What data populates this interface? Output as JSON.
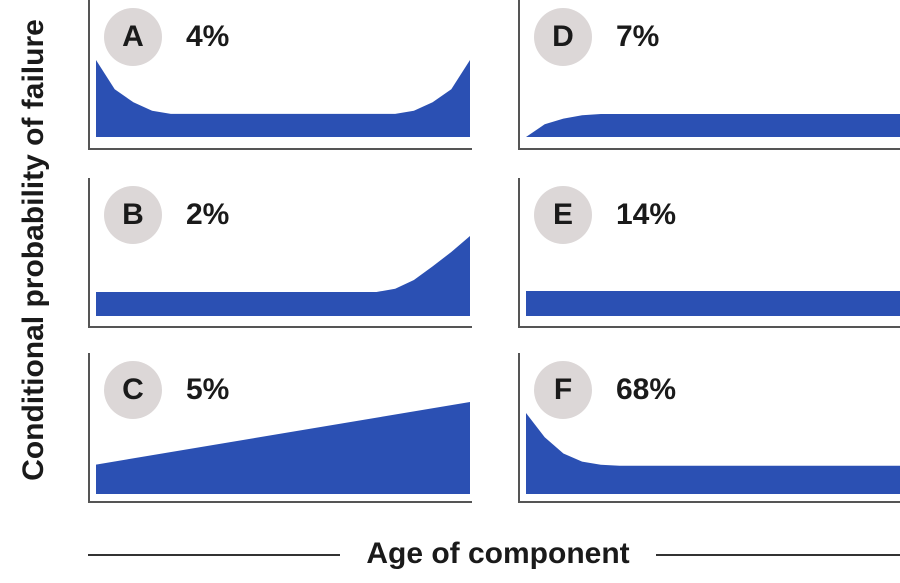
{
  "colors": {
    "fill": "#2b50b3",
    "axis": "#555555",
    "badge": "#dcd7d7"
  },
  "chart_data": [
    {
      "type": "area",
      "panel": "A",
      "percent": "4%",
      "pattern": "bathtub: high early (infant mortality), flat, rising at end (wear-out)",
      "x": [
        0,
        0.05,
        0.1,
        0.15,
        0.2,
        0.25,
        0.3,
        0.4,
        0.5,
        0.6,
        0.7,
        0.75,
        0.8,
        0.85,
        0.9,
        0.95,
        1.0
      ],
      "y": [
        1.0,
        0.62,
        0.45,
        0.34,
        0.3,
        0.3,
        0.3,
        0.3,
        0.3,
        0.3,
        0.3,
        0.3,
        0.3,
        0.34,
        0.45,
        0.62,
        1.0
      ]
    },
    {
      "type": "area",
      "panel": "B",
      "percent": "2%",
      "pattern": "constant then wear-out",
      "x": [
        0,
        0.1,
        0.2,
        0.3,
        0.4,
        0.5,
        0.6,
        0.7,
        0.75,
        0.8,
        0.85,
        0.9,
        0.95,
        1.0
      ],
      "y": [
        0.3,
        0.3,
        0.3,
        0.3,
        0.3,
        0.3,
        0.3,
        0.3,
        0.3,
        0.34,
        0.45,
        0.62,
        0.8,
        1.0
      ]
    },
    {
      "type": "area",
      "panel": "C",
      "percent": "5%",
      "pattern": "gradually increasing",
      "x": [
        0,
        1.0
      ],
      "y": [
        0.32,
        1.0
      ]
    },
    {
      "type": "area",
      "panel": "D",
      "percent": "7%",
      "pattern": "low when new, rising quickly to constant",
      "x": [
        0,
        0.05,
        0.1,
        0.15,
        0.2,
        0.25,
        0.3,
        0.4,
        0.5,
        0.6,
        0.7,
        0.8,
        0.9,
        1.0
      ],
      "y": [
        0.0,
        0.55,
        0.8,
        0.95,
        1.0,
        1.0,
        1.0,
        1.0,
        1.0,
        1.0,
        1.0,
        1.0,
        1.0,
        1.0
      ]
    },
    {
      "type": "area",
      "panel": "E",
      "percent": "14%",
      "pattern": "constant (random failure)",
      "x": [
        0,
        1.0
      ],
      "y": [
        1.0,
        1.0
      ]
    },
    {
      "type": "area",
      "panel": "F",
      "percent": "68%",
      "pattern": "infant mortality then constant",
      "x": [
        0,
        0.05,
        0.1,
        0.15,
        0.2,
        0.25,
        0.3,
        0.4,
        0.5,
        0.6,
        0.7,
        0.8,
        0.9,
        1.0
      ],
      "y": [
        1.0,
        0.7,
        0.5,
        0.4,
        0.36,
        0.35,
        0.35,
        0.35,
        0.35,
        0.35,
        0.35,
        0.35,
        0.35,
        0.35
      ]
    }
  ],
  "ylabel": "Conditional probability of failure",
  "xlabel": "Age of component"
}
